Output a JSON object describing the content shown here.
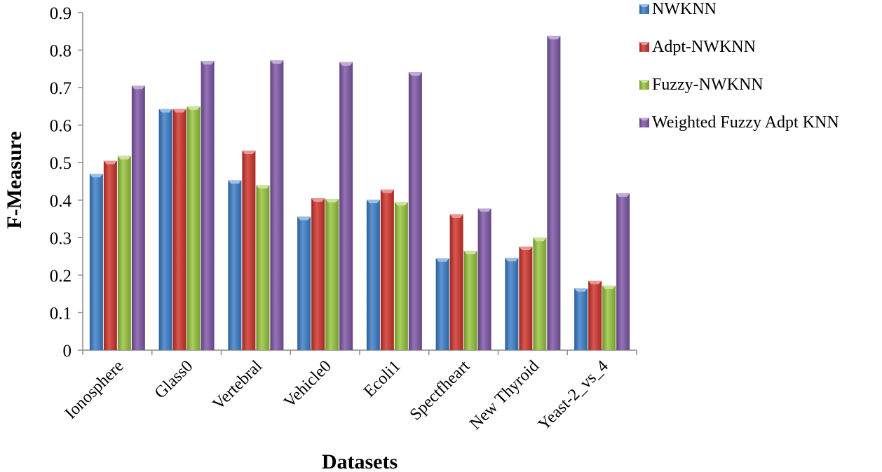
{
  "chart_data": {
    "type": "bar",
    "title": "",
    "xlabel": "Datasets",
    "ylabel": "F-Measure",
    "ylim": [
      0,
      0.9
    ],
    "yticks": [
      "0",
      "0.1",
      "0.2",
      "0.3",
      "0.4",
      "0.5",
      "0.6",
      "0.7",
      "0.8",
      "0.9"
    ],
    "grid": false,
    "legend_position": "top-right",
    "categories": [
      "Ionosphere",
      "Glass0",
      "Vertebral",
      "Vehicle0",
      "Ecoli1",
      "Spectfheart",
      "New Thyroid",
      "Yeast-2_vs_4"
    ],
    "series": [
      {
        "name": "NWKNN",
        "color": "#3a7dc9",
        "values": [
          0.47,
          0.643,
          0.453,
          0.356,
          0.401,
          0.245,
          0.246,
          0.165
        ]
      },
      {
        "name": "Adpt-NWKNN",
        "color": "#d0322a",
        "values": [
          0.505,
          0.643,
          0.532,
          0.405,
          0.428,
          0.362,
          0.276,
          0.185
        ]
      },
      {
        "name": "Fuzzy-NWKNN",
        "color": "#96c43c",
        "values": [
          0.518,
          0.65,
          0.44,
          0.403,
          0.395,
          0.265,
          0.3,
          0.172
        ]
      },
      {
        "name": "Weighted Fuzzy Adpt KNN",
        "color": "#7e56a6",
        "values": [
          0.705,
          0.771,
          0.773,
          0.768,
          0.741,
          0.378,
          0.838,
          0.418
        ]
      }
    ]
  }
}
